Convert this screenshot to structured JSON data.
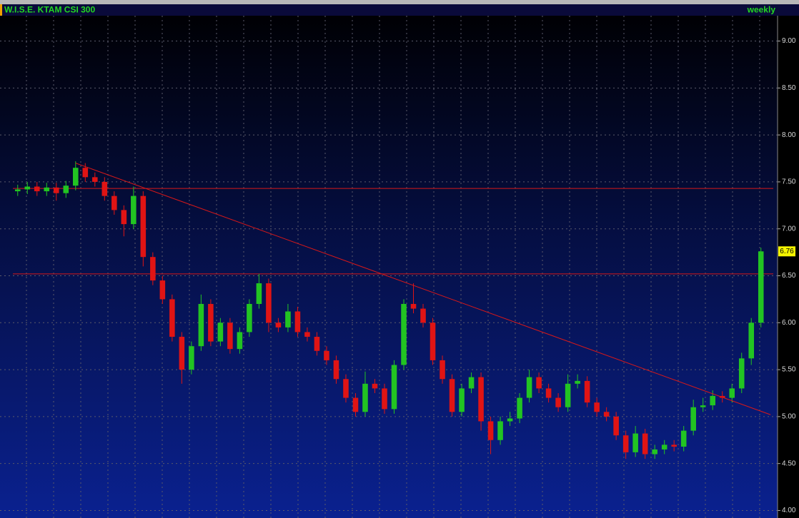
{
  "chart_data": {
    "type": "candlestick",
    "title": "W.I.S.E. KTAM CSI 300",
    "timeframe": "weekly",
    "open": [
      7.4,
      7.42,
      7.45,
      7.4,
      7.44,
      7.38,
      7.46,
      7.65,
      7.55,
      7.5,
      7.35,
      7.2,
      7.05,
      7.35,
      6.7,
      6.45,
      6.25,
      5.85,
      5.5,
      5.75,
      6.2,
      5.8,
      6.0,
      5.72,
      5.9,
      6.2,
      6.42,
      6.0,
      5.95,
      6.12,
      5.9,
      5.85,
      5.7,
      5.6,
      5.4,
      5.2,
      5.05,
      5.35,
      5.3,
      5.08,
      5.55,
      6.2,
      6.15,
      6.0,
      5.6,
      5.4,
      5.05,
      5.3,
      5.42,
      4.95,
      4.75,
      4.95,
      4.98,
      5.2,
      5.42,
      5.3,
      5.2,
      5.1,
      5.35,
      5.38,
      5.15,
      5.05,
      5.0,
      4.8,
      4.62,
      4.82,
      4.6,
      4.65,
      4.7,
      4.68,
      4.85,
      5.1,
      5.12,
      5.22,
      5.2,
      5.3,
      5.62,
      6.0
    ],
    "high": [
      7.47,
      7.5,
      7.5,
      7.49,
      7.49,
      7.51,
      7.72,
      7.7,
      7.6,
      7.55,
      7.4,
      7.25,
      7.45,
      7.4,
      6.75,
      6.5,
      6.3,
      5.9,
      5.8,
      6.3,
      6.25,
      6.05,
      6.05,
      5.95,
      6.25,
      6.52,
      6.47,
      6.05,
      6.2,
      6.17,
      5.95,
      5.9,
      5.75,
      5.65,
      5.45,
      5.25,
      5.48,
      5.4,
      5.35,
      5.6,
      6.25,
      6.42,
      6.2,
      6.05,
      5.65,
      5.45,
      5.35,
      5.47,
      5.47,
      5.0,
      5.0,
      5.05,
      5.25,
      5.5,
      5.47,
      5.35,
      5.25,
      5.45,
      5.45,
      5.43,
      5.2,
      5.1,
      5.05,
      4.85,
      4.9,
      4.87,
      4.7,
      4.75,
      4.75,
      4.9,
      5.18,
      5.2,
      5.28,
      5.27,
      5.35,
      5.68,
      6.05,
      6.8
    ],
    "low": [
      7.35,
      7.37,
      7.35,
      7.35,
      7.3,
      7.33,
      7.41,
      7.5,
      7.45,
      7.3,
      7.15,
      6.92,
      7.0,
      6.6,
      6.4,
      6.2,
      5.8,
      5.35,
      5.45,
      5.7,
      5.75,
      5.75,
      5.67,
      5.67,
      5.85,
      6.15,
      5.9,
      5.9,
      5.9,
      5.85,
      5.8,
      5.65,
      5.55,
      5.35,
      5.15,
      5.0,
      5.0,
      5.25,
      5.03,
      5.03,
      5.5,
      6.1,
      5.95,
      5.55,
      5.35,
      5.0,
      5.0,
      5.25,
      4.85,
      4.6,
      4.7,
      4.9,
      4.93,
      5.15,
      5.25,
      5.15,
      5.05,
      5.05,
      5.3,
      5.1,
      5.0,
      4.95,
      4.75,
      4.55,
      4.57,
      4.55,
      4.55,
      4.6,
      4.63,
      4.63,
      4.8,
      5.05,
      5.07,
      5.15,
      5.15,
      5.25,
      5.55,
      5.95
    ],
    "close": [
      7.42,
      7.45,
      7.4,
      7.44,
      7.38,
      7.46,
      7.65,
      7.55,
      7.5,
      7.35,
      7.2,
      7.05,
      7.35,
      6.7,
      6.45,
      6.25,
      5.85,
      5.5,
      5.75,
      6.2,
      5.8,
      6.0,
      5.72,
      5.9,
      6.2,
      6.42,
      6.0,
      5.95,
      6.12,
      5.9,
      5.85,
      5.7,
      5.6,
      5.4,
      5.2,
      5.05,
      5.35,
      5.3,
      5.08,
      5.55,
      6.2,
      6.15,
      6.0,
      5.6,
      5.4,
      5.05,
      5.3,
      5.42,
      4.95,
      4.75,
      4.95,
      4.98,
      5.2,
      5.42,
      5.3,
      5.2,
      5.1,
      5.35,
      5.38,
      5.15,
      5.05,
      5.0,
      4.8,
      4.62,
      4.82,
      4.6,
      4.65,
      4.7,
      4.68,
      4.85,
      5.1,
      5.12,
      5.22,
      5.2,
      5.3,
      5.62,
      6.0,
      6.76
    ],
    "up_color": "#22c422",
    "down_color": "#e01414",
    "ylim": [
      3.92,
      9.27
    ],
    "yticks": [
      {
        "value": 4,
        "label": "4.00"
      },
      {
        "value": 4.5,
        "label": "4.50"
      },
      {
        "value": 5,
        "label": "5.00"
      },
      {
        "value": 5.5,
        "label": "5.50"
      },
      {
        "value": 6,
        "label": "6.00"
      },
      {
        "value": 6.5,
        "label": "6.50"
      },
      {
        "value": 7,
        "label": "7.00"
      },
      {
        "value": 7.5,
        "label": "7.50"
      },
      {
        "value": 8,
        "label": "8.00"
      },
      {
        "value": 8.5,
        "label": "8.50"
      },
      {
        "value": 9,
        "label": "9.00"
      }
    ],
    "grid": true,
    "hlines": [
      7.43,
      6.52
    ],
    "line_color": "#d81818",
    "trendline": {
      "from_index": 6,
      "from_value": 7.7,
      "to_index": 78,
      "to_value": 5.02
    },
    "last_price": 6.76
  }
}
